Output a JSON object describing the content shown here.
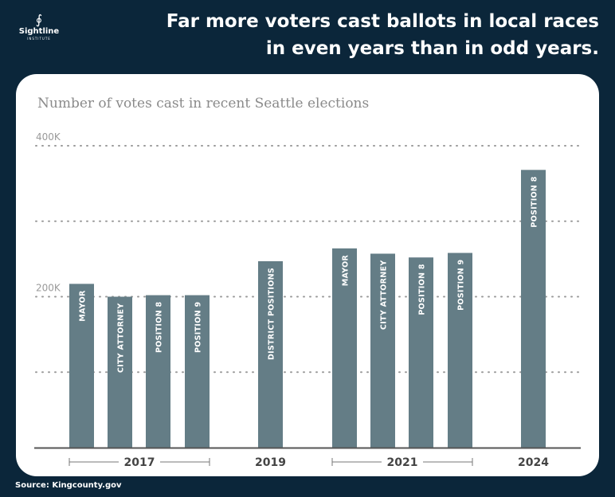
{
  "header": {
    "logo": {
      "name": "Sightline",
      "sub": "INSTITUTE"
    },
    "title_lines": [
      "Far more voters cast ballots in local races",
      "in even years than in odd years."
    ]
  },
  "source": "Source: Kingcounty.gov",
  "colors": {
    "background": "#0b263a",
    "bar": "#647d86",
    "card": "#ffffff"
  },
  "chart_data": {
    "type": "bar",
    "title": "Number of votes cast in recent Seattle elections",
    "ylim": [
      0,
      400000
    ],
    "yticks": [
      {
        "value": 0,
        "label": ""
      },
      {
        "value": 100000,
        "label": ""
      },
      {
        "value": 200000,
        "label": "200K"
      },
      {
        "value": 300000,
        "label": ""
      },
      {
        "value": 400000,
        "label": "400K"
      }
    ],
    "grid": true,
    "groups": [
      {
        "label": "2017",
        "bars": [
          {
            "label": "Mayor",
            "value": 217000
          },
          {
            "label": "City Attorney",
            "value": 200000
          },
          {
            "label": "Position 8",
            "value": 202000
          },
          {
            "label": "Position 9",
            "value": 202000
          }
        ]
      },
      {
        "label": "2019",
        "bars": [
          {
            "label": "District Positions",
            "value": 247000
          }
        ]
      },
      {
        "label": "2021",
        "bars": [
          {
            "label": "Mayor",
            "value": 264000
          },
          {
            "label": "City Attorney",
            "value": 257000
          },
          {
            "label": "Position 8",
            "value": 252000
          },
          {
            "label": "Position 9",
            "value": 258000
          }
        ]
      },
      {
        "label": "2024",
        "bars": [
          {
            "label": "Position 8",
            "value": 368000
          }
        ]
      }
    ]
  }
}
